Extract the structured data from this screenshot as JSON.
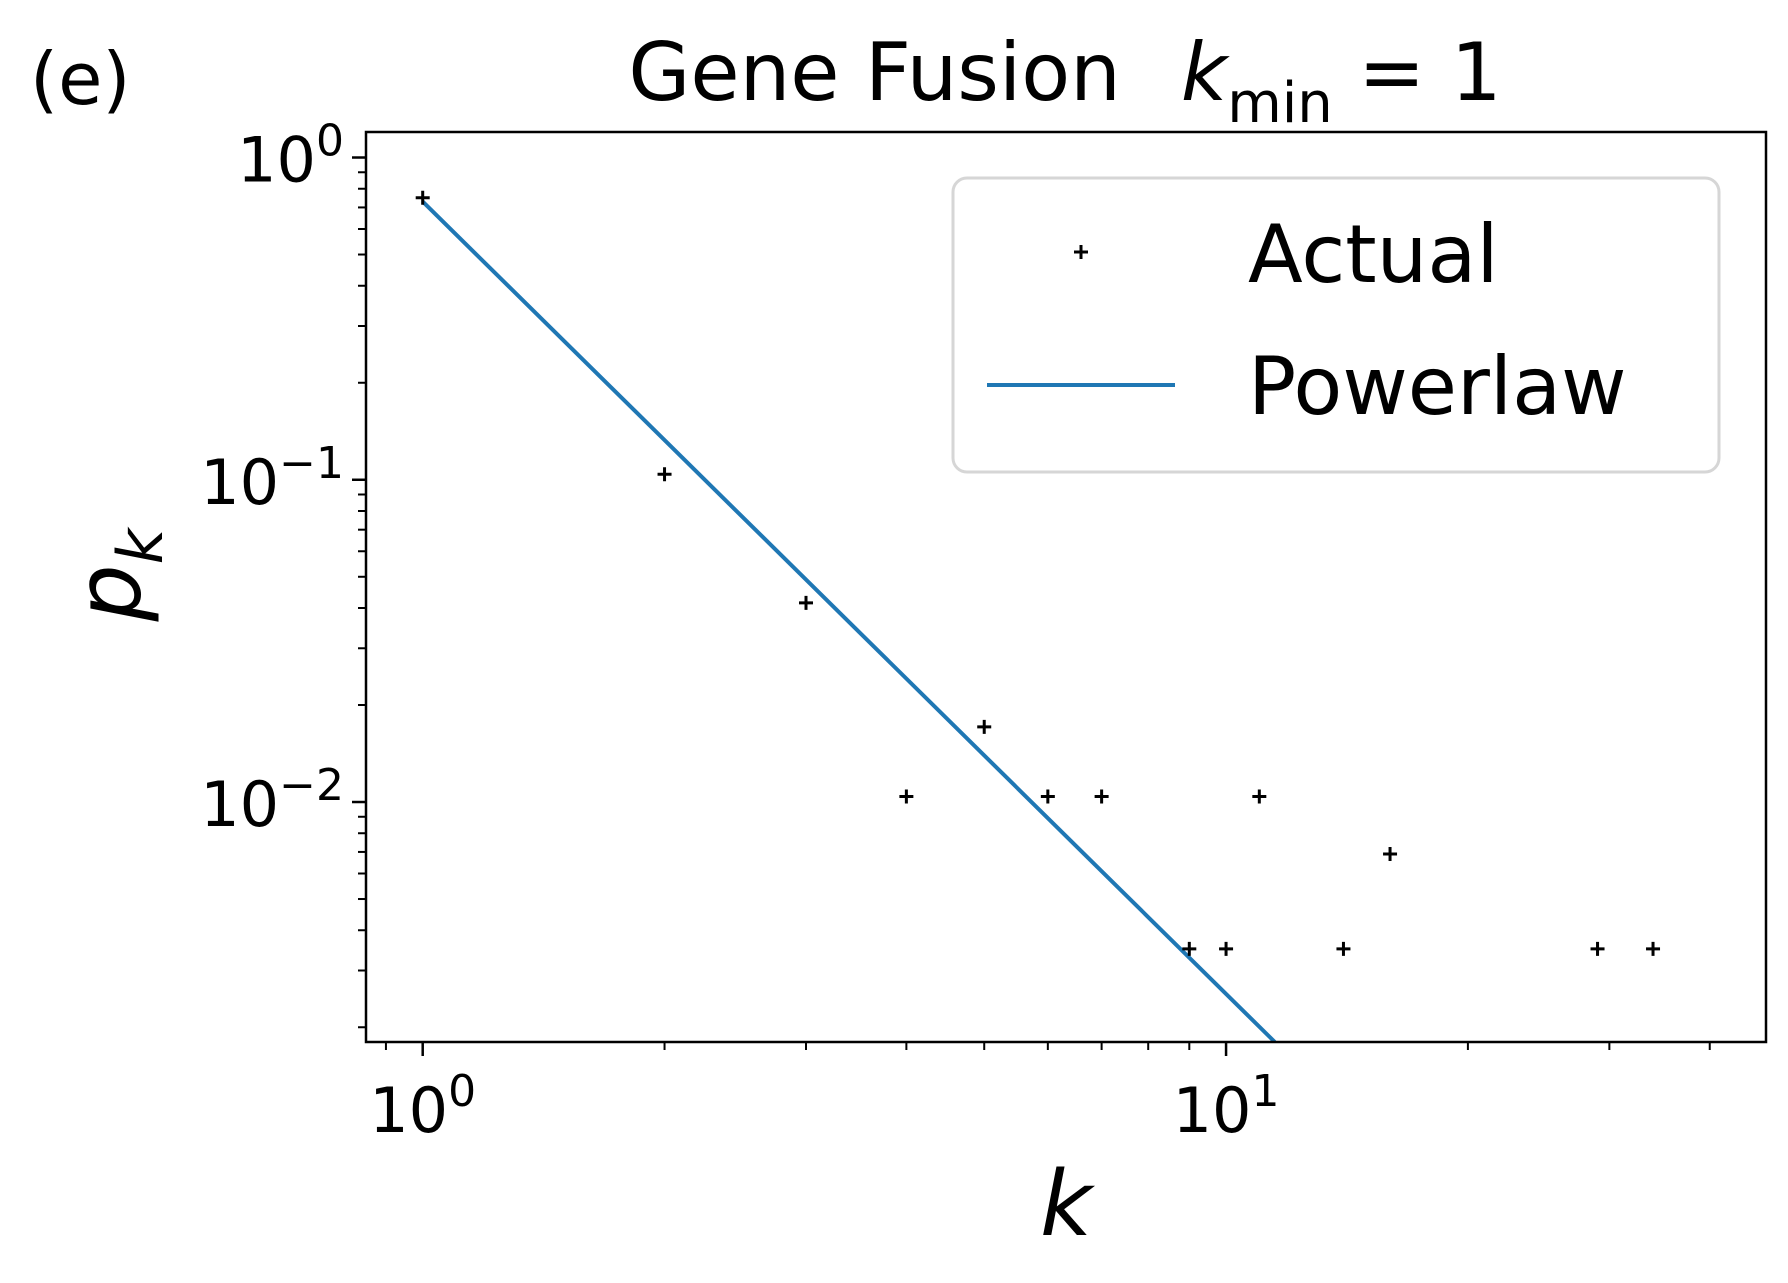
{
  "panel_label": "(e)",
  "chart_data": {
    "type": "scatter",
    "title": {
      "main": "Gene Fusion",
      "param": "k",
      "param_sub": "min",
      "param_rest": " = 1"
    },
    "xlabel": "k",
    "ylabel": {
      "main": "p",
      "sub": "k"
    },
    "xscale": "log",
    "yscale": "log",
    "xlim": [
      0.85,
      47
    ],
    "ylim": [
      0.0018,
      1.2
    ],
    "x_ticks": [
      {
        "value": 1,
        "base": "10",
        "exp": "0"
      },
      {
        "value": 10,
        "base": "10",
        "exp": "1"
      }
    ],
    "y_ticks": [
      {
        "value": 1,
        "base": "10",
        "exp": "0"
      },
      {
        "value": 0.1,
        "base": "10",
        "exp": "−1"
      },
      {
        "value": 0.01,
        "base": "10",
        "exp": "−2"
      }
    ],
    "legend": {
      "position": "upper-right",
      "entries": [
        "Actual",
        "Powerlaw"
      ]
    },
    "series": [
      {
        "name": "Actual",
        "marker": "+",
        "color": "#000000",
        "points": [
          {
            "x": 1,
            "y": 0.75
          },
          {
            "x": 2,
            "y": 0.104
          },
          {
            "x": 3,
            "y": 0.0415
          },
          {
            "x": 4,
            "y": 0.0104
          },
          {
            "x": 5,
            "y": 0.0171
          },
          {
            "x": 6,
            "y": 0.0104
          },
          {
            "x": 7,
            "y": 0.0104
          },
          {
            "x": 9,
            "y": 0.0035
          },
          {
            "x": 10,
            "y": 0.0035
          },
          {
            "x": 11,
            "y": 0.0104
          },
          {
            "x": 14,
            "y": 0.0035
          },
          {
            "x": 16,
            "y": 0.0069
          },
          {
            "x": 29,
            "y": 0.0035
          },
          {
            "x": 34,
            "y": 0.0035
          }
        ]
      },
      {
        "name": "Powerlaw",
        "type": "line",
        "color": "#1f77b4",
        "points": [
          {
            "x": 1,
            "y": 0.73
          },
          {
            "x": 11.5,
            "y": 0.0018
          }
        ]
      }
    ]
  }
}
